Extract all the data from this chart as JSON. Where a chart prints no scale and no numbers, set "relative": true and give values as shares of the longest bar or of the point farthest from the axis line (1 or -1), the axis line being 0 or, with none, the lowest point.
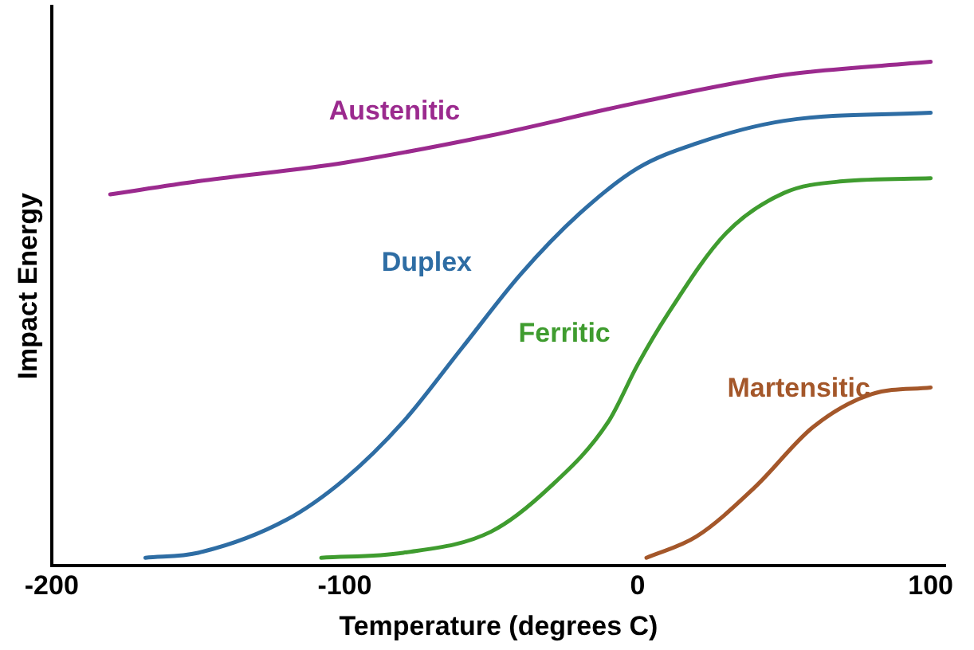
{
  "chart_data": {
    "type": "line",
    "relative": true,
    "xlabel": "Temperature (degrees C)",
    "ylabel": "Impact Energy",
    "xlim": [
      -200,
      105
    ],
    "xticks": [
      -200,
      -100,
      0,
      100
    ],
    "grid": false,
    "legend": false,
    "marker": "none",
    "line_style": "solid",
    "series": [
      {
        "name": "Austenitic",
        "color": "#9b2a8e",
        "x": [
          -180,
          -150,
          -100,
          -50,
          0,
          50,
          100
        ],
        "values": [
          0.737,
          0.763,
          0.8,
          0.854,
          0.919,
          0.974,
          1
        ]
      },
      {
        "name": "Duplex",
        "color": "#2e6da4",
        "x": [
          -168,
          -150,
          -120,
          -100,
          -80,
          -60,
          -40,
          -20,
          0,
          20,
          50,
          100
        ],
        "values": [
          0.016,
          0.026,
          0.091,
          0.172,
          0.286,
          0.432,
          0.578,
          0.698,
          0.789,
          0.838,
          0.883,
          0.899
        ]
      },
      {
        "name": "Ferritic",
        "color": "#3f9c2f",
        "x": [
          -108,
          -80,
          -50,
          -30,
          -10,
          0,
          10,
          30,
          50,
          70,
          100
        ],
        "values": [
          0.016,
          0.026,
          0.068,
          0.156,
          0.286,
          0.399,
          0.497,
          0.659,
          0.74,
          0.763,
          0.769
        ]
      },
      {
        "name": "Martensitic",
        "color": "#a4572a",
        "x": [
          3,
          20,
          40,
          60,
          80,
          100
        ],
        "values": [
          0.016,
          0.058,
          0.156,
          0.276,
          0.341,
          0.354
        ]
      }
    ]
  }
}
